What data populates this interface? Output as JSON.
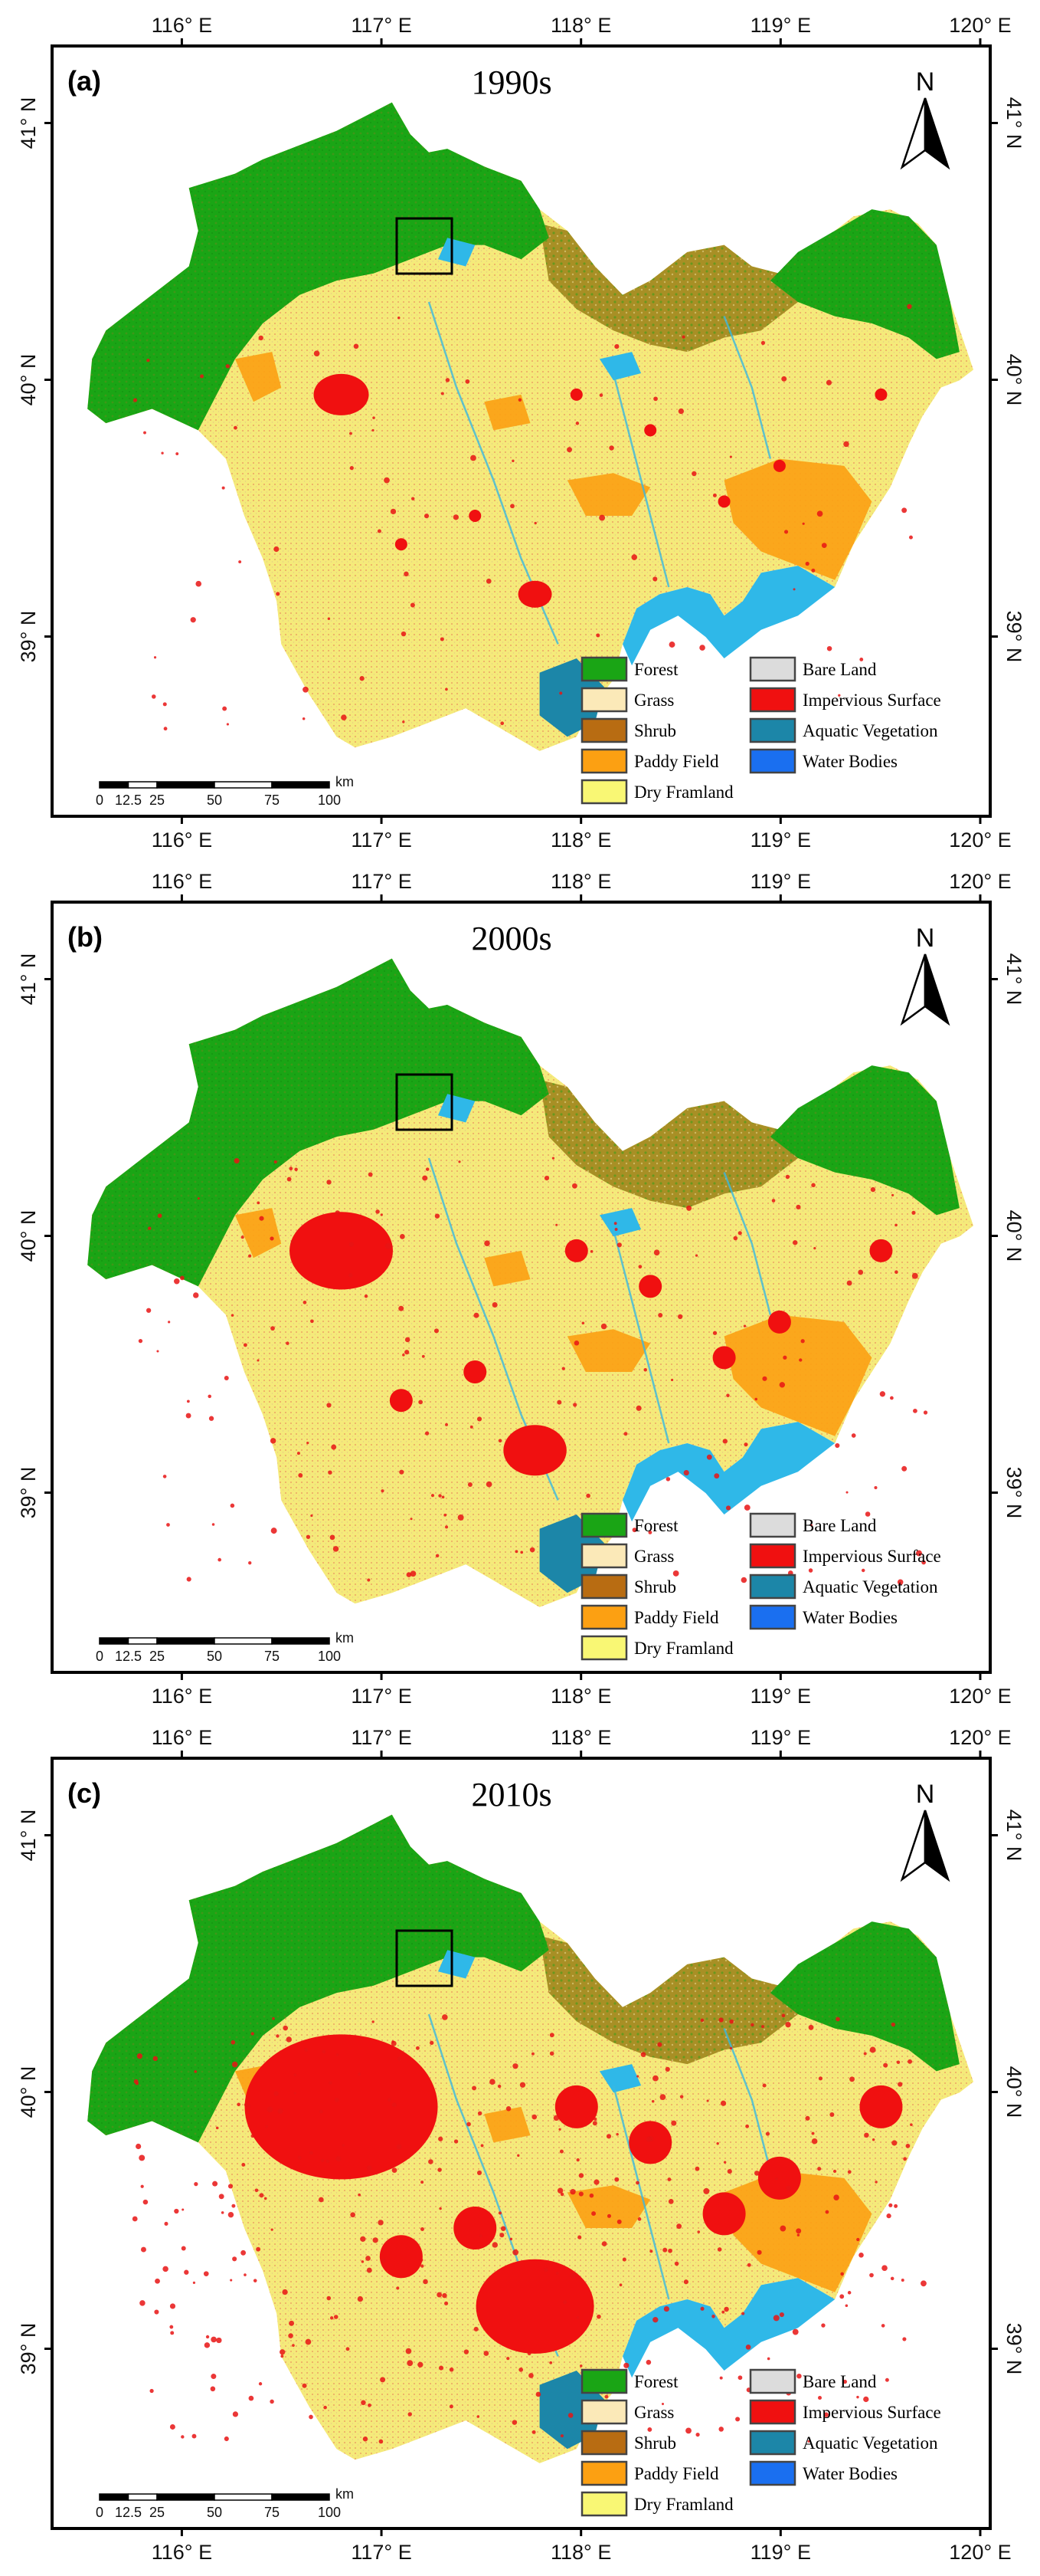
{
  "panels": [
    {
      "label": "(a)",
      "title": "1990s",
      "built_extent": 0.0,
      "agriculture_share": 0.78
    },
    {
      "label": "(b)",
      "title": "2000s",
      "built_extent": 0.35,
      "agriculture_share": 0.76
    },
    {
      "label": "(c)",
      "title": "2010s",
      "built_extent": 1.0,
      "agriculture_share": 0.7
    }
  ],
  "graticule": {
    "longitudes": [
      "116° E",
      "117° E",
      "118° E",
      "119° E",
      "120° E"
    ],
    "latitudes": [
      "41° N",
      "40° N",
      "39° N"
    ],
    "lon_range": [
      115.35,
      120.05
    ],
    "lat_range": [
      38.3,
      41.3
    ],
    "lon_values": [
      116,
      117,
      118,
      119,
      120
    ],
    "lat_values": [
      41,
      40,
      39
    ]
  },
  "north_arrow": {
    "label": "N"
  },
  "scale_bar": {
    "unit": "km",
    "labels": [
      "0",
      "12.5",
      "25",
      "50",
      "75",
      "100"
    ],
    "values": [
      0,
      12.5,
      25,
      50,
      75,
      100
    ]
  },
  "legend": {
    "left": [
      {
        "name": "Forest",
        "color": "#1aa515"
      },
      {
        "name": "Grass",
        "color": "#fbe9b8"
      },
      {
        "name": "Shrub",
        "color": "#b86c12"
      },
      {
        "name": "Paddy Field",
        "color": "#fca012"
      },
      {
        "name": "Dry Framland",
        "color": "#f9f774"
      }
    ],
    "right": [
      {
        "name": "Bare Land",
        "color": "#dcdcdc"
      },
      {
        "name": "Impervious Surface",
        "color": "#f01010"
      },
      {
        "name": "Aquatic Vegetation",
        "color": "#1c86a8"
      },
      {
        "name": "Water Bodies",
        "color": "#1a6ff0"
      }
    ]
  },
  "colors": {
    "water_sea": "#2fb8e8",
    "water_dark": "#1c86a8",
    "frame": "#000000"
  }
}
